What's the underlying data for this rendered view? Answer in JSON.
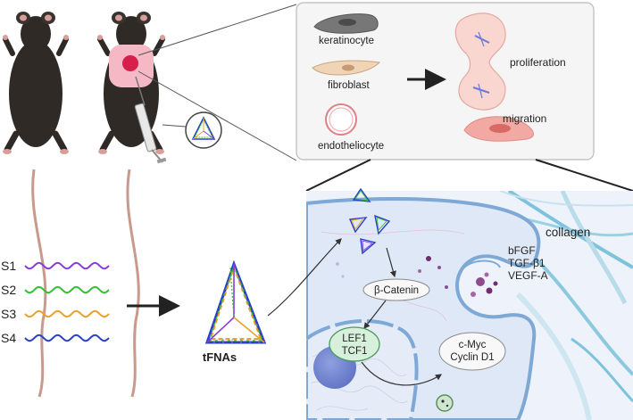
{
  "cells": {
    "keratinocyte": "keratinocyte",
    "fibroblast": "fibroblast",
    "endotheliocyte": "endotheliocyte",
    "proliferation": "proliferation",
    "migration": "migration"
  },
  "strands": [
    {
      "label": "S1",
      "color": "#8a3bd6"
    },
    {
      "label": "S2",
      "color": "#33c033"
    },
    {
      "label": "S3",
      "color": "#e8a12e"
    },
    {
      "label": "S4",
      "color": "#2b3fc7"
    }
  ],
  "tfna_label": "tFNAs",
  "signaling": {
    "beta_catenin": "β-Catenin",
    "lef1": "LEF1",
    "tcf1": "TCF1",
    "cmyc": "c-Myc",
    "cyclin": "Cyclin D1"
  },
  "factors": [
    "bFGF",
    "TGF-β1",
    "VEGF-A"
  ],
  "collagen": "collagen",
  "colors": {
    "mouse": "#2f2a26",
    "wound": "#d61f4a",
    "wound_halo": "#f6b8c4",
    "cell_bg": "#dfe8f6",
    "cell_membrane": "#7ea8d6",
    "collagen": "#7ec3dc"
  }
}
